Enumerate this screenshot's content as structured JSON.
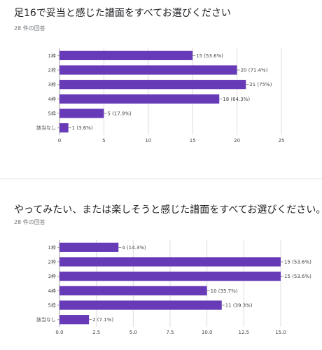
{
  "chart_data": [
    {
      "type": "bar",
      "orientation": "horizontal",
      "title": "足16で妥当と感じた譜面をすべてお選びください",
      "subtitle": "28 件の回答",
      "categories": [
        "1枠",
        "2枠",
        "3枠",
        "4枠",
        "5枠",
        "該当なし"
      ],
      "values": [
        15,
        20,
        21,
        18,
        5,
        1
      ],
      "value_labels": [
        "15 (53.6%)",
        "20 (71.4%)",
        "21 (75%)",
        "18 (64.3%)",
        "5 (17.9%)",
        "1 (3.6%)"
      ],
      "xlim": [
        0,
        25
      ],
      "xticks": [
        "0",
        "5",
        "10",
        "15",
        "20",
        "25"
      ],
      "grid": true,
      "bar_color": "#673ab7"
    },
    {
      "type": "bar",
      "orientation": "horizontal",
      "title": "やってみたい、または楽しそうと感じた譜面をすべてお選びください。",
      "subtitle": "28 件の回答",
      "categories": [
        "1枠",
        "2枠",
        "3枠",
        "4枠",
        "5枠",
        "該当なし"
      ],
      "values": [
        4,
        15,
        15,
        10,
        11,
        2
      ],
      "value_labels": [
        "4 (14.3%)",
        "15 (53.6%)",
        "15 (53.6%)",
        "10 (35.7%)",
        "11 (39.3%)",
        "2 (7.1%)"
      ],
      "xlim": [
        0,
        15
      ],
      "xticks": [
        "0.0",
        "2.5",
        "5.0",
        "7.5",
        "10.0",
        "12.5",
        "15.0"
      ],
      "grid": true,
      "bar_color": "#673ab7"
    }
  ]
}
